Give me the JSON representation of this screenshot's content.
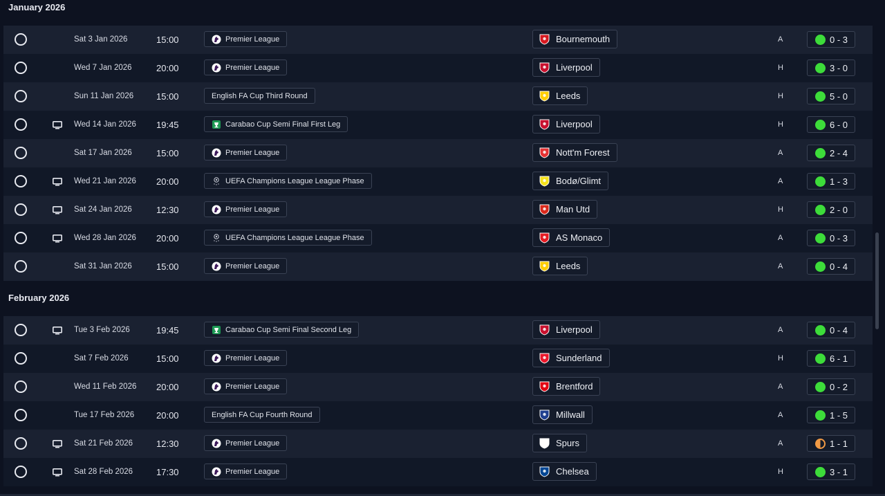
{
  "months": [
    {
      "label": "January 2026",
      "fixtures": [
        {
          "date": "Sat 3 Jan 2026",
          "time": "15:00",
          "tv": false,
          "competition": "Premier League",
          "comp_icon": "premier-league-icon",
          "opponent": "Bournemouth",
          "crest_color": "#d71920",
          "venue": "A",
          "result": "0 - 3",
          "outcome": "win"
        },
        {
          "date": "Wed 7 Jan 2026",
          "time": "20:00",
          "tv": false,
          "competition": "Premier League",
          "comp_icon": "premier-league-icon",
          "opponent": "Liverpool",
          "crest_color": "#c8102e",
          "venue": "H",
          "result": "3 - 0",
          "outcome": "win"
        },
        {
          "date": "Sun 11 Jan 2026",
          "time": "15:00",
          "tv": false,
          "competition": "English FA Cup Third Round",
          "comp_icon": "",
          "opponent": "Leeds",
          "crest_color": "#ffcd00",
          "venue": "H",
          "result": "5 - 0",
          "outcome": "win"
        },
        {
          "date": "Wed 14 Jan 2026",
          "time": "19:45",
          "tv": true,
          "competition": "Carabao Cup Semi Final First Leg",
          "comp_icon": "carabao-cup-icon",
          "opponent": "Liverpool",
          "crest_color": "#c8102e",
          "venue": "H",
          "result": "6 - 0",
          "outcome": "win"
        },
        {
          "date": "Sat 17 Jan 2026",
          "time": "15:00",
          "tv": false,
          "competition": "Premier League",
          "comp_icon": "premier-league-icon",
          "opponent": "Nott'm Forest",
          "crest_color": "#e53233",
          "venue": "A",
          "result": "2 - 4",
          "outcome": "win"
        },
        {
          "date": "Wed 21 Jan 2026",
          "time": "20:00",
          "tv": true,
          "competition": "UEFA Champions League League Phase",
          "comp_icon": "champions-league-icon",
          "opponent": "Bodø/Glimt",
          "crest_color": "#f5e21b",
          "venue": "A",
          "result": "1 - 3",
          "outcome": "win"
        },
        {
          "date": "Sat 24 Jan 2026",
          "time": "12:30",
          "tv": true,
          "competition": "Premier League",
          "comp_icon": "premier-league-icon",
          "opponent": "Man Utd",
          "crest_color": "#da291c",
          "venue": "H",
          "result": "2 - 0",
          "outcome": "win"
        },
        {
          "date": "Wed 28 Jan 2026",
          "time": "20:00",
          "tv": true,
          "competition": "UEFA Champions League League Phase",
          "comp_icon": "champions-league-icon",
          "opponent": "AS Monaco",
          "crest_color": "#e51b22",
          "venue": "A",
          "result": "0 - 3",
          "outcome": "win"
        },
        {
          "date": "Sat 31 Jan 2026",
          "time": "15:00",
          "tv": false,
          "competition": "Premier League",
          "comp_icon": "premier-league-icon",
          "opponent": "Leeds",
          "crest_color": "#ffcd00",
          "venue": "A",
          "result": "0 - 4",
          "outcome": "win"
        }
      ]
    },
    {
      "label": "February 2026",
      "fixtures": [
        {
          "date": "Tue 3 Feb 2026",
          "time": "19:45",
          "tv": true,
          "competition": "Carabao Cup Semi Final Second Leg",
          "comp_icon": "carabao-cup-icon",
          "opponent": "Liverpool",
          "crest_color": "#c8102e",
          "venue": "A",
          "result": "0 - 4",
          "outcome": "win"
        },
        {
          "date": "Sat 7 Feb 2026",
          "time": "15:00",
          "tv": false,
          "competition": "Premier League",
          "comp_icon": "premier-league-icon",
          "opponent": "Sunderland",
          "crest_color": "#eb172b",
          "venue": "H",
          "result": "6 - 1",
          "outcome": "win"
        },
        {
          "date": "Wed 11 Feb 2026",
          "time": "20:00",
          "tv": false,
          "competition": "Premier League",
          "comp_icon": "premier-league-icon",
          "opponent": "Brentford",
          "crest_color": "#e30613",
          "venue": "A",
          "result": "0 - 2",
          "outcome": "win"
        },
        {
          "date": "Tue 17 Feb 2026",
          "time": "20:00",
          "tv": false,
          "competition": "English FA Cup Fourth Round",
          "comp_icon": "",
          "opponent": "Millwall",
          "crest_color": "#1f3f8f",
          "venue": "A",
          "result": "1 - 5",
          "outcome": "win"
        },
        {
          "date": "Sat 21 Feb 2026",
          "time": "12:30",
          "tv": true,
          "competition": "Premier League",
          "comp_icon": "premier-league-icon",
          "opponent": "Spurs",
          "crest_color": "#ffffff",
          "venue": "A",
          "result": "1 - 1",
          "outcome": "draw"
        },
        {
          "date": "Sat 28 Feb 2026",
          "time": "17:30",
          "tv": true,
          "competition": "Premier League",
          "comp_icon": "premier-league-icon",
          "opponent": "Chelsea",
          "crest_color": "#034694",
          "venue": "H",
          "result": "3 - 1",
          "outcome": "win"
        }
      ]
    }
  ]
}
